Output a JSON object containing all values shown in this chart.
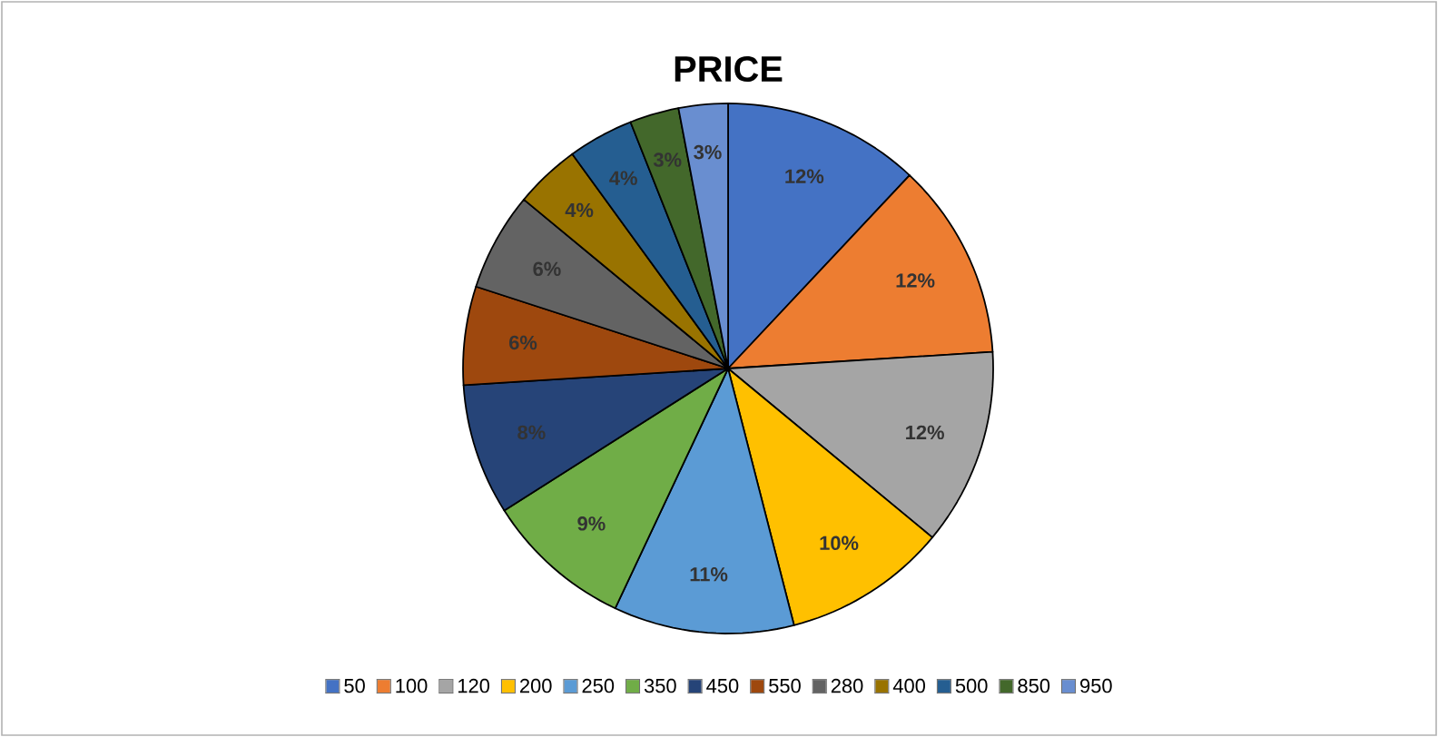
{
  "chart_data": {
    "type": "pie",
    "title": "PRICE",
    "categories": [
      "50",
      "100",
      "120",
      "200",
      "250",
      "350",
      "450",
      "550",
      "280",
      "400",
      "500",
      "850",
      "950"
    ],
    "values": [
      12,
      12,
      12,
      10,
      11,
      9,
      8,
      6,
      6,
      4,
      4,
      3,
      3
    ],
    "value_labels": [
      "12%",
      "12%",
      "12%",
      "10%",
      "11%",
      "9%",
      "8%",
      "6%",
      "6%",
      "4%",
      "4%",
      "3%",
      "3%"
    ],
    "colors": [
      "#4472c4",
      "#ed7d31",
      "#a5a5a5",
      "#ffc000",
      "#5b9bd5",
      "#70ad47",
      "#264478",
      "#9e480e",
      "#636363",
      "#997300",
      "#255e91",
      "#43682b",
      "#698ed0"
    ],
    "legend": "bottom"
  }
}
